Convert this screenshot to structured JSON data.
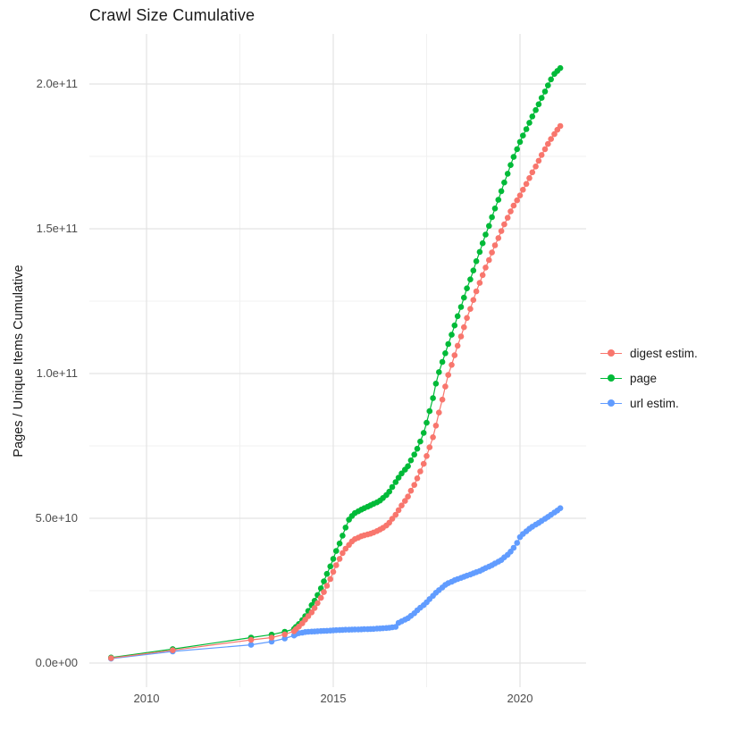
{
  "chart_data": {
    "type": "line",
    "title": "Crawl Size Cumulative",
    "xlabel": "",
    "ylabel": "Pages / Unique Items Cumulative",
    "value_unit": "points are [decimal_year, value_in_billions(1e9)]",
    "x_axis": {
      "ticks": [
        {
          "label": "2010",
          "value": 2010
        },
        {
          "label": "2015",
          "value": 2015
        },
        {
          "label": "2020",
          "value": 2020
        }
      ],
      "minor": [
        2012.5,
        2017.5
      ],
      "range": [
        2008.47,
        2021.77
      ]
    },
    "y_axis": {
      "ticks": [
        {
          "label": "0.0e+00",
          "value": 0
        },
        {
          "label": "5.0e+10",
          "value": 50
        },
        {
          "label": "1.0e+11",
          "value": 100
        },
        {
          "label": "1.5e+11",
          "value": 150
        },
        {
          "label": "2.0e+11",
          "value": 200
        }
      ],
      "minor": [
        25,
        75,
        125,
        175
      ],
      "range": [
        -8.3,
        217.3
      ]
    },
    "grid": {
      "major_color": "#e3e3e3",
      "minor_color": "#f1f1f1",
      "background": "#ffffff"
    },
    "legend": {
      "position": "right"
    },
    "series": [
      {
        "name": "digest estim.",
        "color": "#F8766D",
        "points": [
          [
            2009.05,
            1.7
          ],
          [
            2010.7,
            4.4
          ],
          [
            2012.8,
            8.0
          ],
          [
            2013.35,
            8.8
          ],
          [
            2013.7,
            9.9
          ],
          [
            2013.95,
            11.0
          ],
          [
            2014.0,
            11.7
          ],
          [
            2014.08,
            12.6
          ],
          [
            2014.17,
            13.7
          ],
          [
            2014.25,
            15.0
          ],
          [
            2014.33,
            16.2
          ],
          [
            2014.42,
            17.5
          ],
          [
            2014.5,
            19.0
          ],
          [
            2014.58,
            20.7
          ],
          [
            2014.67,
            22.5
          ],
          [
            2014.75,
            24.5
          ],
          [
            2014.83,
            26.7
          ],
          [
            2014.92,
            29.0
          ],
          [
            2015.0,
            31.5
          ],
          [
            2015.08,
            33.8
          ],
          [
            2015.17,
            36.0
          ],
          [
            2015.25,
            38.0
          ],
          [
            2015.33,
            39.5
          ],
          [
            2015.42,
            40.8
          ],
          [
            2015.5,
            42.0
          ],
          [
            2015.58,
            42.8
          ],
          [
            2015.67,
            43.3
          ],
          [
            2015.75,
            43.8
          ],
          [
            2015.83,
            44.1
          ],
          [
            2015.92,
            44.4
          ],
          [
            2016.0,
            44.7
          ],
          [
            2016.08,
            45.1
          ],
          [
            2016.17,
            45.6
          ],
          [
            2016.25,
            46.1
          ],
          [
            2016.33,
            46.7
          ],
          [
            2016.42,
            47.5
          ],
          [
            2016.5,
            48.5
          ],
          [
            2016.58,
            49.8
          ],
          [
            2016.67,
            51.2
          ],
          [
            2016.75,
            52.8
          ],
          [
            2016.83,
            54.4
          ],
          [
            2016.92,
            56.0
          ],
          [
            2017.0,
            57.5
          ],
          [
            2017.08,
            59.5
          ],
          [
            2017.17,
            61.5
          ],
          [
            2017.25,
            63.8
          ],
          [
            2017.33,
            66.2
          ],
          [
            2017.42,
            68.8
          ],
          [
            2017.5,
            71.5
          ],
          [
            2017.58,
            74.5
          ],
          [
            2017.67,
            78.0
          ],
          [
            2017.75,
            82.0
          ],
          [
            2017.83,
            86.5
          ],
          [
            2017.92,
            91.0
          ],
          [
            2018.0,
            95.5
          ],
          [
            2018.08,
            99.5
          ],
          [
            2018.17,
            103.0
          ],
          [
            2018.25,
            106.3
          ],
          [
            2018.33,
            109.6
          ],
          [
            2018.42,
            112.8
          ],
          [
            2018.5,
            116.0
          ],
          [
            2018.58,
            119.2
          ],
          [
            2018.67,
            122.3
          ],
          [
            2018.75,
            125.4
          ],
          [
            2018.83,
            128.4
          ],
          [
            2018.92,
            131.3
          ],
          [
            2019.0,
            134.0
          ],
          [
            2019.08,
            136.6
          ],
          [
            2019.17,
            139.2
          ],
          [
            2019.25,
            141.8
          ],
          [
            2019.33,
            144.3
          ],
          [
            2019.42,
            146.8
          ],
          [
            2019.5,
            149.2
          ],
          [
            2019.58,
            151.5
          ],
          [
            2019.67,
            153.8
          ],
          [
            2019.75,
            156.0
          ],
          [
            2019.83,
            158.0
          ],
          [
            2019.92,
            159.8
          ],
          [
            2020.0,
            161.5
          ],
          [
            2020.08,
            163.5
          ],
          [
            2020.17,
            165.5
          ],
          [
            2020.25,
            167.5
          ],
          [
            2020.33,
            169.5
          ],
          [
            2020.42,
            171.5
          ],
          [
            2020.5,
            173.5
          ],
          [
            2020.58,
            175.5
          ],
          [
            2020.67,
            177.5
          ],
          [
            2020.75,
            179.3
          ],
          [
            2020.83,
            181.0
          ],
          [
            2020.92,
            182.7
          ],
          [
            2021.0,
            184.2
          ],
          [
            2021.08,
            185.5
          ]
        ]
      },
      {
        "name": "page",
        "color": "#00BA38",
        "points": [
          [
            2009.05,
            1.9
          ],
          [
            2010.7,
            4.8
          ],
          [
            2012.8,
            8.8
          ],
          [
            2013.35,
            9.8
          ],
          [
            2013.7,
            10.8
          ],
          [
            2013.95,
            11.8
          ],
          [
            2014.0,
            12.5
          ],
          [
            2014.08,
            13.5
          ],
          [
            2014.17,
            14.8
          ],
          [
            2014.25,
            16.2
          ],
          [
            2014.33,
            18.0
          ],
          [
            2014.42,
            20.0
          ],
          [
            2014.5,
            21.5
          ],
          [
            2014.58,
            23.5
          ],
          [
            2014.67,
            25.8
          ],
          [
            2014.75,
            28.2
          ],
          [
            2014.83,
            30.8
          ],
          [
            2014.92,
            33.4
          ],
          [
            2015.0,
            36.0
          ],
          [
            2015.08,
            38.7
          ],
          [
            2015.17,
            41.3
          ],
          [
            2015.25,
            44.0
          ],
          [
            2015.33,
            46.8
          ],
          [
            2015.42,
            49.5
          ],
          [
            2015.5,
            50.8
          ],
          [
            2015.58,
            51.8
          ],
          [
            2015.67,
            52.4
          ],
          [
            2015.75,
            53.0
          ],
          [
            2015.83,
            53.5
          ],
          [
            2015.92,
            54.0
          ],
          [
            2016.0,
            54.5
          ],
          [
            2016.08,
            55.0
          ],
          [
            2016.17,
            55.5
          ],
          [
            2016.25,
            56.1
          ],
          [
            2016.33,
            57.0
          ],
          [
            2016.42,
            58.0
          ],
          [
            2016.5,
            59.2
          ],
          [
            2016.58,
            60.8
          ],
          [
            2016.67,
            62.5
          ],
          [
            2016.75,
            64.0
          ],
          [
            2016.83,
            65.5
          ],
          [
            2016.92,
            66.8
          ],
          [
            2017.0,
            68.0
          ],
          [
            2017.08,
            70.0
          ],
          [
            2017.17,
            72.0
          ],
          [
            2017.25,
            74.0
          ],
          [
            2017.33,
            76.5
          ],
          [
            2017.42,
            79.5
          ],
          [
            2017.5,
            83.0
          ],
          [
            2017.58,
            87.0
          ],
          [
            2017.67,
            91.5
          ],
          [
            2017.75,
            96.5
          ],
          [
            2017.83,
            100.5
          ],
          [
            2017.92,
            104.0
          ],
          [
            2018.0,
            107.0
          ],
          [
            2018.08,
            110.2
          ],
          [
            2018.17,
            113.4
          ],
          [
            2018.25,
            116.6
          ],
          [
            2018.33,
            119.8
          ],
          [
            2018.42,
            123.0
          ],
          [
            2018.5,
            126.2
          ],
          [
            2018.58,
            129.4
          ],
          [
            2018.67,
            132.5
          ],
          [
            2018.75,
            135.6
          ],
          [
            2018.83,
            138.8
          ],
          [
            2018.92,
            142.0
          ],
          [
            2019.0,
            145.0
          ],
          [
            2019.08,
            148.0
          ],
          [
            2019.17,
            151.0
          ],
          [
            2019.25,
            154.0
          ],
          [
            2019.33,
            157.0
          ],
          [
            2019.42,
            160.0
          ],
          [
            2019.5,
            163.0
          ],
          [
            2019.58,
            166.0
          ],
          [
            2019.67,
            169.0
          ],
          [
            2019.75,
            172.0
          ],
          [
            2019.83,
            174.8
          ],
          [
            2019.92,
            177.5
          ],
          [
            2020.0,
            180.0
          ],
          [
            2020.08,
            182.2
          ],
          [
            2020.17,
            184.4
          ],
          [
            2020.25,
            186.6
          ],
          [
            2020.33,
            188.8
          ],
          [
            2020.42,
            191.0
          ],
          [
            2020.5,
            193.0
          ],
          [
            2020.58,
            195.2
          ],
          [
            2020.67,
            197.4
          ],
          [
            2020.75,
            199.5
          ],
          [
            2020.83,
            201.6
          ],
          [
            2020.92,
            203.5
          ],
          [
            2021.0,
            204.5
          ],
          [
            2021.08,
            205.5
          ]
        ]
      },
      {
        "name": "url estim.",
        "color": "#619CFF",
        "points": [
          [
            2009.05,
            1.5
          ],
          [
            2010.7,
            4.0
          ],
          [
            2012.8,
            6.3
          ],
          [
            2013.35,
            7.4
          ],
          [
            2013.7,
            8.5
          ],
          [
            2013.95,
            9.5
          ],
          [
            2014.0,
            10.0
          ],
          [
            2014.08,
            10.3
          ],
          [
            2014.17,
            10.5
          ],
          [
            2014.25,
            10.7
          ],
          [
            2014.33,
            10.8
          ],
          [
            2014.42,
            10.85
          ],
          [
            2014.5,
            10.9
          ],
          [
            2014.58,
            11.0
          ],
          [
            2014.67,
            11.05
          ],
          [
            2014.75,
            11.1
          ],
          [
            2014.83,
            11.15
          ],
          [
            2014.92,
            11.2
          ],
          [
            2015.0,
            11.3
          ],
          [
            2015.08,
            11.35
          ],
          [
            2015.17,
            11.4
          ],
          [
            2015.25,
            11.45
          ],
          [
            2015.33,
            11.5
          ],
          [
            2015.42,
            11.5
          ],
          [
            2015.5,
            11.55
          ],
          [
            2015.58,
            11.6
          ],
          [
            2015.67,
            11.6
          ],
          [
            2015.75,
            11.65
          ],
          [
            2015.83,
            11.7
          ],
          [
            2015.92,
            11.7
          ],
          [
            2016.0,
            11.75
          ],
          [
            2016.08,
            11.8
          ],
          [
            2016.17,
            11.9
          ],
          [
            2016.25,
            11.95
          ],
          [
            2016.33,
            12.0
          ],
          [
            2016.42,
            12.1
          ],
          [
            2016.5,
            12.2
          ],
          [
            2016.58,
            12.35
          ],
          [
            2016.67,
            12.5
          ],
          [
            2016.75,
            13.9
          ],
          [
            2016.83,
            14.4
          ],
          [
            2016.92,
            15.0
          ],
          [
            2017.0,
            15.5
          ],
          [
            2017.08,
            16.3
          ],
          [
            2017.17,
            17.2
          ],
          [
            2017.25,
            18.2
          ],
          [
            2017.33,
            19.1
          ],
          [
            2017.42,
            20.0
          ],
          [
            2017.5,
            21.0
          ],
          [
            2017.58,
            22.1
          ],
          [
            2017.67,
            23.2
          ],
          [
            2017.75,
            24.3
          ],
          [
            2017.83,
            25.2
          ],
          [
            2017.92,
            26.1
          ],
          [
            2018.0,
            27.0
          ],
          [
            2018.08,
            27.6
          ],
          [
            2018.17,
            28.1
          ],
          [
            2018.25,
            28.6
          ],
          [
            2018.33,
            29.0
          ],
          [
            2018.42,
            29.4
          ],
          [
            2018.5,
            29.8
          ],
          [
            2018.58,
            30.2
          ],
          [
            2018.67,
            30.6
          ],
          [
            2018.75,
            31.0
          ],
          [
            2018.83,
            31.4
          ],
          [
            2018.92,
            31.8
          ],
          [
            2019.0,
            32.3
          ],
          [
            2019.08,
            32.8
          ],
          [
            2019.17,
            33.3
          ],
          [
            2019.25,
            33.8
          ],
          [
            2019.33,
            34.4
          ],
          [
            2019.42,
            35.0
          ],
          [
            2019.5,
            35.6
          ],
          [
            2019.58,
            36.5
          ],
          [
            2019.67,
            37.4
          ],
          [
            2019.75,
            38.5
          ],
          [
            2019.83,
            39.8
          ],
          [
            2019.92,
            41.5
          ],
          [
            2020.0,
            43.5
          ],
          [
            2020.08,
            44.6
          ],
          [
            2020.17,
            45.5
          ],
          [
            2020.25,
            46.4
          ],
          [
            2020.33,
            47.1
          ],
          [
            2020.42,
            47.8
          ],
          [
            2020.5,
            48.4
          ],
          [
            2020.58,
            49.1
          ],
          [
            2020.67,
            49.8
          ],
          [
            2020.75,
            50.5
          ],
          [
            2020.83,
            51.2
          ],
          [
            2020.92,
            52.0
          ],
          [
            2021.0,
            52.7
          ],
          [
            2021.08,
            53.5
          ]
        ]
      }
    ]
  }
}
